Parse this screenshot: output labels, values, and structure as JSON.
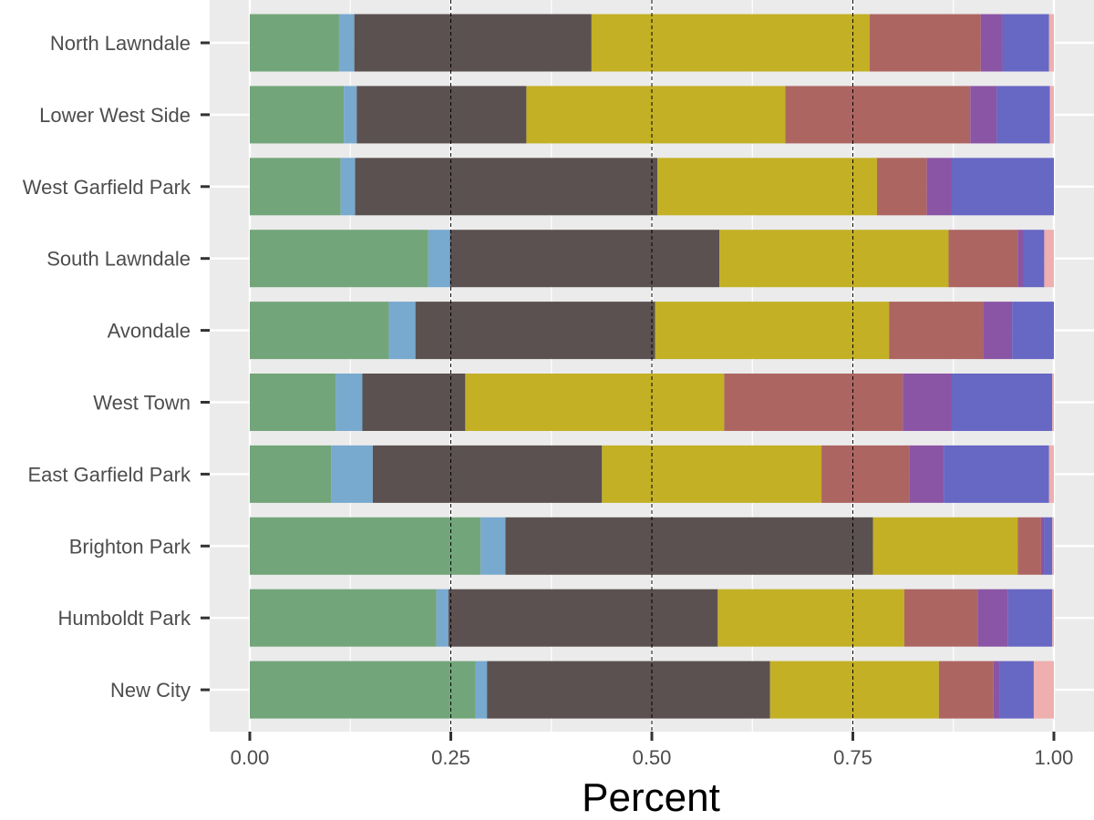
{
  "chart_data": {
    "type": "bar",
    "orientation": "horizontal",
    "stacked": true,
    "title": "",
    "xlabel": "Percent",
    "ylabel": "",
    "xlim": [
      0,
      1
    ],
    "x_ticks": [
      0,
      0.25,
      0.5,
      0.75,
      1
    ],
    "x_tick_labels": [
      "0.00",
      "0.25",
      "0.50",
      "0.75",
      "1.00"
    ],
    "reference_lines": [
      0.25,
      0.5,
      0.75
    ],
    "grid": true,
    "legend": "none",
    "categories": [
      "North Lawndale",
      "Lower West Side",
      "West Garfield Park",
      "South Lawndale",
      "Avondale",
      "West Town",
      "East Garfield Park",
      "Brighton Park",
      "Humboldt Park",
      "New City"
    ],
    "series": [
      {
        "color": "#73a57a",
        "values": [
          0.111,
          0.117,
          0.113,
          0.222,
          0.173,
          0.107,
          0.101,
          0.287,
          0.232,
          0.281
        ]
      },
      {
        "color": "#78a9cf",
        "values": [
          0.019,
          0.016,
          0.018,
          0.027,
          0.033,
          0.033,
          0.052,
          0.031,
          0.015,
          0.014
        ]
      },
      {
        "color": "#5b5150",
        "values": [
          0.295,
          0.211,
          0.376,
          0.335,
          0.298,
          0.128,
          0.285,
          0.457,
          0.335,
          0.352
        ]
      },
      {
        "color": "#c3b025",
        "values": [
          0.346,
          0.322,
          0.273,
          0.285,
          0.291,
          0.322,
          0.273,
          0.18,
          0.232,
          0.21
        ]
      },
      {
        "color": "#ad6562",
        "values": [
          0.138,
          0.23,
          0.062,
          0.086,
          0.117,
          0.222,
          0.109,
          0.029,
          0.091,
          0.068
        ]
      },
      {
        "color": "#8b55a6",
        "values": [
          0.027,
          0.033,
          0.031,
          0.007,
          0.036,
          0.061,
          0.043,
          0.004,
          0.038,
          0.008
        ]
      },
      {
        "color": "#6767c4",
        "values": [
          0.058,
          0.066,
          0.127,
          0.026,
          0.052,
          0.125,
          0.131,
          0.01,
          0.055,
          0.042
        ]
      },
      {
        "color": "#eeafae",
        "values": [
          0.006,
          0.005,
          0.0,
          0.012,
          0.0,
          0.002,
          0.006,
          0.002,
          0.002,
          0.025
        ]
      }
    ]
  }
}
